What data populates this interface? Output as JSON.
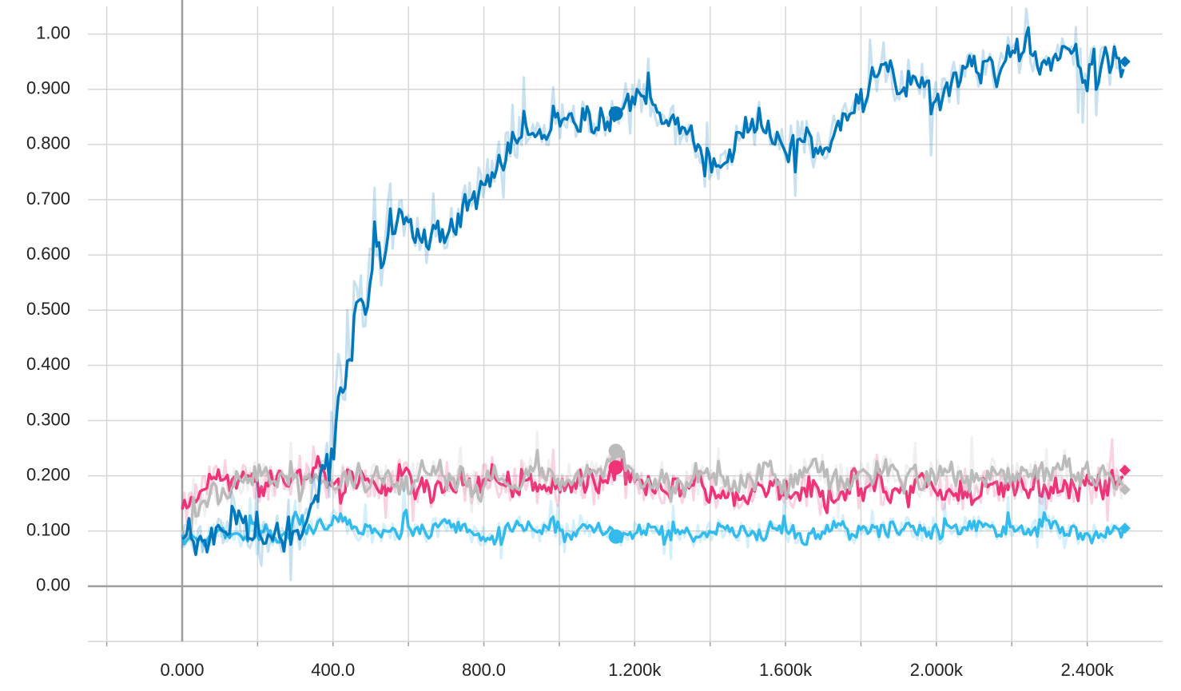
{
  "chart_data": {
    "type": "line",
    "title": "",
    "xlabel": "",
    "ylabel": "",
    "xlim": [
      -250,
      2600
    ],
    "ylim": [
      -0.1,
      1.05
    ],
    "x_ticks": [
      0,
      400,
      800,
      1200,
      1600,
      2000,
      2400
    ],
    "x_tick_labels": [
      "0.000",
      "400.0",
      "800.0",
      "1.200k",
      "1.600k",
      "2.000k",
      "2.400k"
    ],
    "y_ticks": [
      0,
      0.1,
      0.2,
      0.3,
      0.4,
      0.5,
      0.6,
      0.7,
      0.8,
      0.9,
      1.0
    ],
    "y_tick_labels": [
      "0.00",
      "0.100",
      "0.200",
      "0.300",
      "0.400",
      "0.500",
      "0.600",
      "0.700",
      "0.800",
      "0.900",
      "1.00"
    ],
    "grid": true,
    "legend": "none",
    "x": [
      0,
      50,
      100,
      150,
      200,
      250,
      300,
      350,
      400,
      450,
      500,
      550,
      600,
      650,
      700,
      750,
      800,
      850,
      900,
      950,
      1000,
      1050,
      1100,
      1150,
      1200,
      1250,
      1300,
      1350,
      1400,
      1450,
      1500,
      1550,
      1600,
      1650,
      1700,
      1750,
      1800,
      1850,
      1900,
      1950,
      2000,
      2050,
      2100,
      2150,
      2200,
      2250,
      2300,
      2350,
      2400,
      2450,
      2500
    ],
    "series": [
      {
        "color": "#0077bb",
        "values": [
          0.1,
          0.08,
          0.11,
          0.1,
          0.09,
          0.1,
          0.08,
          0.14,
          0.3,
          0.47,
          0.55,
          0.67,
          0.66,
          0.61,
          0.63,
          0.7,
          0.74,
          0.78,
          0.82,
          0.83,
          0.84,
          0.85,
          0.84,
          0.86,
          0.9,
          0.86,
          0.84,
          0.8,
          0.74,
          0.79,
          0.84,
          0.81,
          0.8,
          0.82,
          0.8,
          0.84,
          0.88,
          0.92,
          0.91,
          0.93,
          0.88,
          0.92,
          0.94,
          0.93,
          0.97,
          0.95,
          0.96,
          0.96,
          0.94,
          0.96,
          0.95
        ],
        "end_marker": 0.95,
        "hover_marker": {
          "x": 1150,
          "y": 0.856
        }
      },
      {
        "color": "#ee3377",
        "values": [
          0.13,
          0.17,
          0.2,
          0.19,
          0.18,
          0.2,
          0.19,
          0.22,
          0.18,
          0.19,
          0.18,
          0.2,
          0.19,
          0.17,
          0.2,
          0.18,
          0.19,
          0.17,
          0.2,
          0.18,
          0.17,
          0.19,
          0.18,
          0.22,
          0.17,
          0.19,
          0.17,
          0.19,
          0.18,
          0.17,
          0.18,
          0.2,
          0.17,
          0.18,
          0.16,
          0.19,
          0.17,
          0.18,
          0.16,
          0.19,
          0.17,
          0.18,
          0.16,
          0.19,
          0.18,
          0.19,
          0.17,
          0.19,
          0.18,
          0.19,
          0.21
        ],
        "end_marker": 0.21,
        "hover_marker": {
          "x": 1150,
          "y": 0.215
        }
      },
      {
        "color": "#bbbbbb",
        "values": [
          0.1,
          0.14,
          0.17,
          0.19,
          0.21,
          0.18,
          0.2,
          0.18,
          0.19,
          0.2,
          0.19,
          0.2,
          0.19,
          0.21,
          0.2,
          0.19,
          0.2,
          0.19,
          0.2,
          0.21,
          0.2,
          0.19,
          0.21,
          0.24,
          0.19,
          0.2,
          0.19,
          0.2,
          0.19,
          0.2,
          0.19,
          0.2,
          0.19,
          0.2,
          0.21,
          0.19,
          0.2,
          0.21,
          0.2,
          0.19,
          0.2,
          0.19,
          0.2,
          0.21,
          0.19,
          0.2,
          0.19,
          0.2,
          0.21,
          0.2,
          0.18
        ],
        "end_marker": 0.175,
        "hover_marker": {
          "x": 1150,
          "y": 0.245
        }
      },
      {
        "color": "#33bbee",
        "values": [
          0.09,
          0.08,
          0.1,
          0.09,
          0.1,
          0.09,
          0.11,
          0.1,
          0.12,
          0.1,
          0.09,
          0.1,
          0.11,
          0.1,
          0.11,
          0.1,
          0.09,
          0.1,
          0.11,
          0.1,
          0.09,
          0.11,
          0.1,
          0.09,
          0.1,
          0.11,
          0.1,
          0.09,
          0.1,
          0.11,
          0.09,
          0.1,
          0.1,
          0.09,
          0.1,
          0.11,
          0.09,
          0.1,
          0.11,
          0.1,
          0.09,
          0.1,
          0.11,
          0.1,
          0.09,
          0.1,
          0.11,
          0.1,
          0.09,
          0.1,
          0.1
        ],
        "end_marker": 0.105,
        "hover_marker": {
          "x": 1150,
          "y": 0.09
        }
      }
    ]
  }
}
